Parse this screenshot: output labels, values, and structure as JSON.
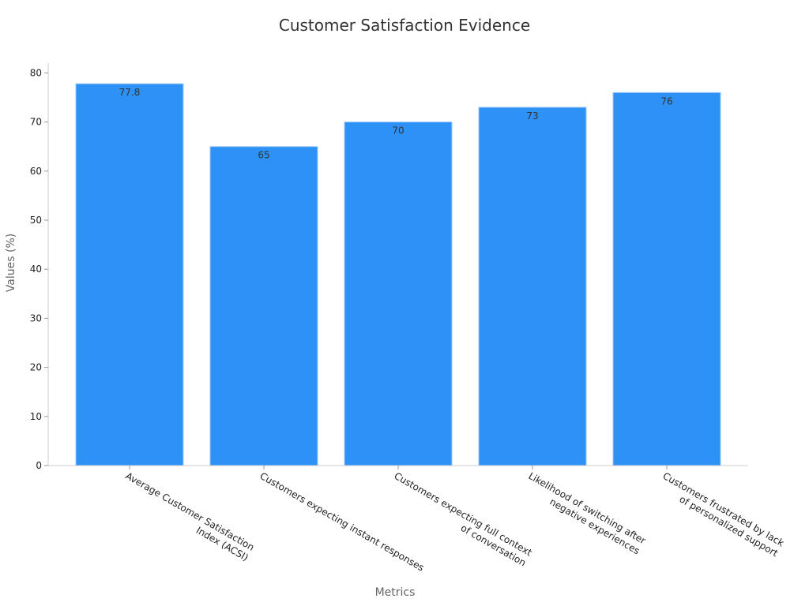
{
  "chart_data": {
    "type": "bar",
    "title": "Customer Satisfaction Evidence",
    "xlabel": "Metrics",
    "ylabel": "Values (%)",
    "categories": [
      [
        "Average Customer Satisfaction",
        "Index (ACSI)"
      ],
      [
        "Customers expecting instant responses"
      ],
      [
        "Customers expecting full context",
        "of conversation"
      ],
      [
        "Likelihood of switching after",
        "negative experiences"
      ],
      [
        "Customers frustrated by lack",
        "of personalized support"
      ]
    ],
    "values": [
      77.8,
      65,
      70,
      73,
      76
    ],
    "data_labels": [
      "77.8",
      "65",
      "70",
      "73",
      "76"
    ],
    "ylim": [
      0,
      82
    ],
    "yticks": [
      0,
      10,
      20,
      30,
      40,
      50,
      60,
      70,
      80
    ],
    "grid": false,
    "colors": {
      "bar": "#2d91f5",
      "bar_edge": "#9ec9f7",
      "axis": "#cccccc",
      "tick_text": "#222222",
      "label_text": "#666666",
      "title_text": "#333333",
      "data_label_text": "#333333"
    }
  }
}
